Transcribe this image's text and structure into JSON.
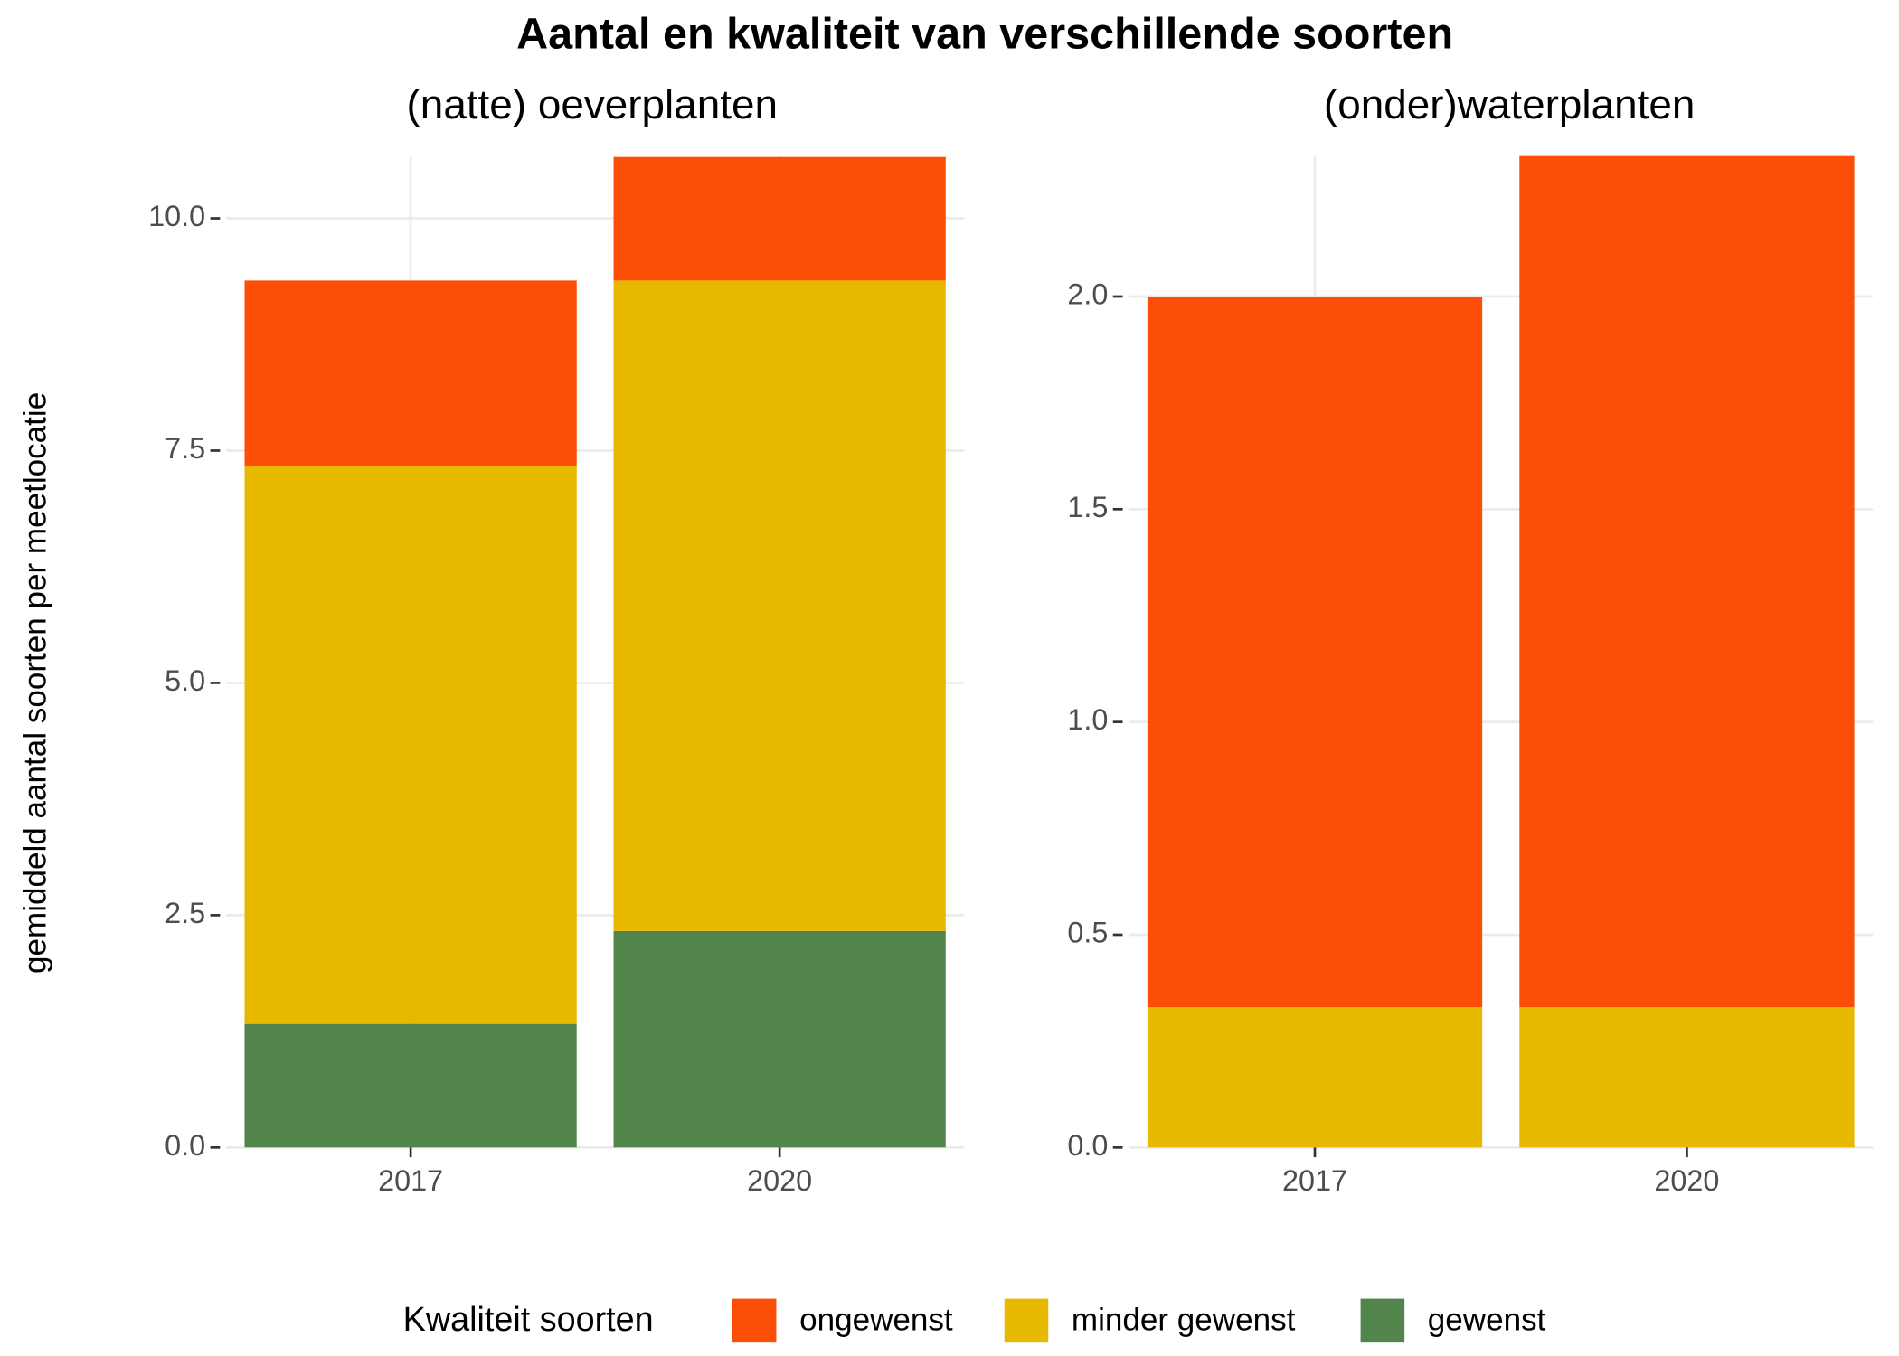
{
  "title": "Aantal en kwaliteit van verschillende soorten",
  "y_axis_label": "gemiddeld aantal soorten per meetlocatie",
  "legend_title": "Kwaliteit soorten",
  "chart_data": [
    {
      "type": "stacked_bar",
      "title": "(natte) oeverplanten",
      "categories": [
        "2017",
        "2020"
      ],
      "series": [
        {
          "name": "ongewenst",
          "color": "#FC4E07",
          "values": [
            2.0,
            1.33
          ]
        },
        {
          "name": "minder gewenst",
          "color": "#E7B800",
          "values": [
            6.0,
            7.0
          ]
        },
        {
          "name": "gewenst",
          "color": "#52854C",
          "values": [
            1.33,
            2.33
          ]
        }
      ],
      "ylim": [
        0,
        10.67
      ],
      "yticks": [
        {
          "value": 0,
          "label": "0.0"
        },
        {
          "value": 2.5,
          "label": "2.5"
        },
        {
          "value": 5,
          "label": "5.0"
        },
        {
          "value": 7.5,
          "label": "7.5"
        },
        {
          "value": 10,
          "label": "10.0"
        }
      ],
      "grid": true
    },
    {
      "type": "stacked_bar",
      "title": "(onder)waterplanten",
      "categories": [
        "2017",
        "2020"
      ],
      "series": [
        {
          "name": "ongewenst",
          "color": "#FC4E07",
          "values": [
            1.67,
            2.0
          ]
        },
        {
          "name": "minder gewenst",
          "color": "#E7B800",
          "values": [
            0.33,
            0.33
          ]
        }
      ],
      "ylim": [
        0,
        2.33
      ],
      "yticks": [
        {
          "value": 0,
          "label": "0.0"
        },
        {
          "value": 0.5,
          "label": "0.5"
        },
        {
          "value": 1,
          "label": "1.0"
        },
        {
          "value": 1.5,
          "label": "1.5"
        },
        {
          "value": 2,
          "label": "2.0"
        }
      ],
      "grid": true
    }
  ]
}
